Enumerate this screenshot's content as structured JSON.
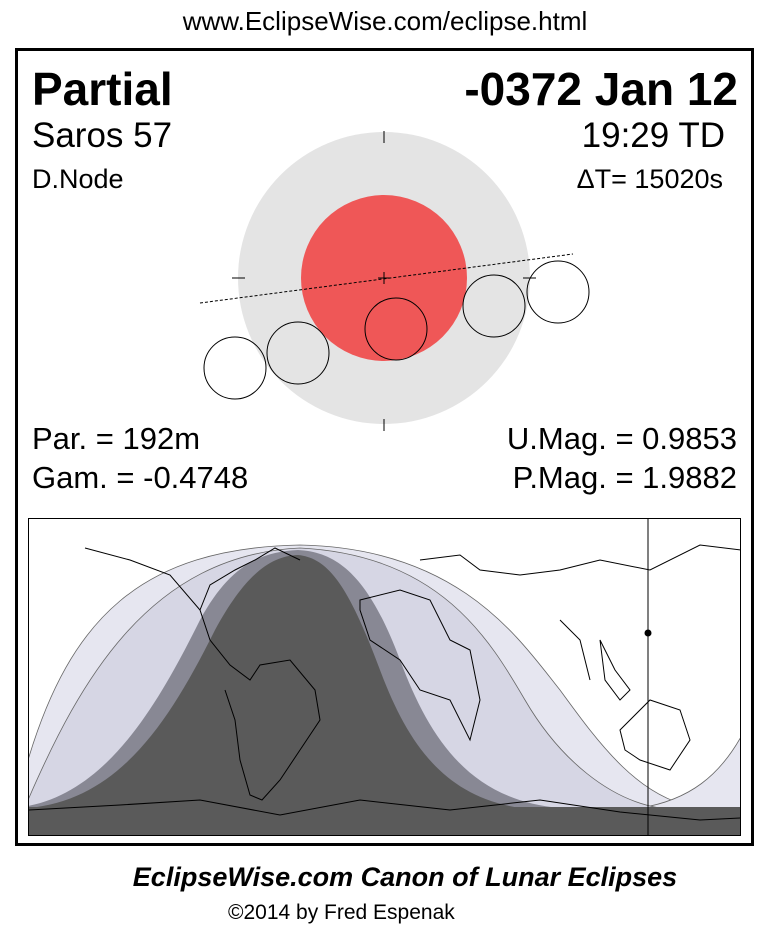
{
  "url": "www.EclipseWise.com/eclipse.html",
  "eclipse": {
    "type": "Partial",
    "date": "-0372 Jan 12",
    "saros": "Saros  57",
    "time": "19:29 TD",
    "node": "D.Node",
    "delta_t": "ΔT=  15020s",
    "duration": "Par. = 192m",
    "gamma": "Gam. = -0.4748",
    "umbral_mag": "U.Mag. = 0.9853",
    "penumbral_mag": "P.Mag. = 1.9882"
  },
  "colors": {
    "penumbra": "#e4e4e4",
    "umbra": "#ef5757",
    "map_penumbral": "#e6e6f0",
    "map_partial_penumbral": "#d6d6e4",
    "map_umbral": "#888894",
    "map_total_visible": "#5a5a5a"
  },
  "footer": {
    "title": "EclipseWise.com Canon of Lunar Eclipses",
    "copyright": "©2014 by Fred Espenak"
  }
}
